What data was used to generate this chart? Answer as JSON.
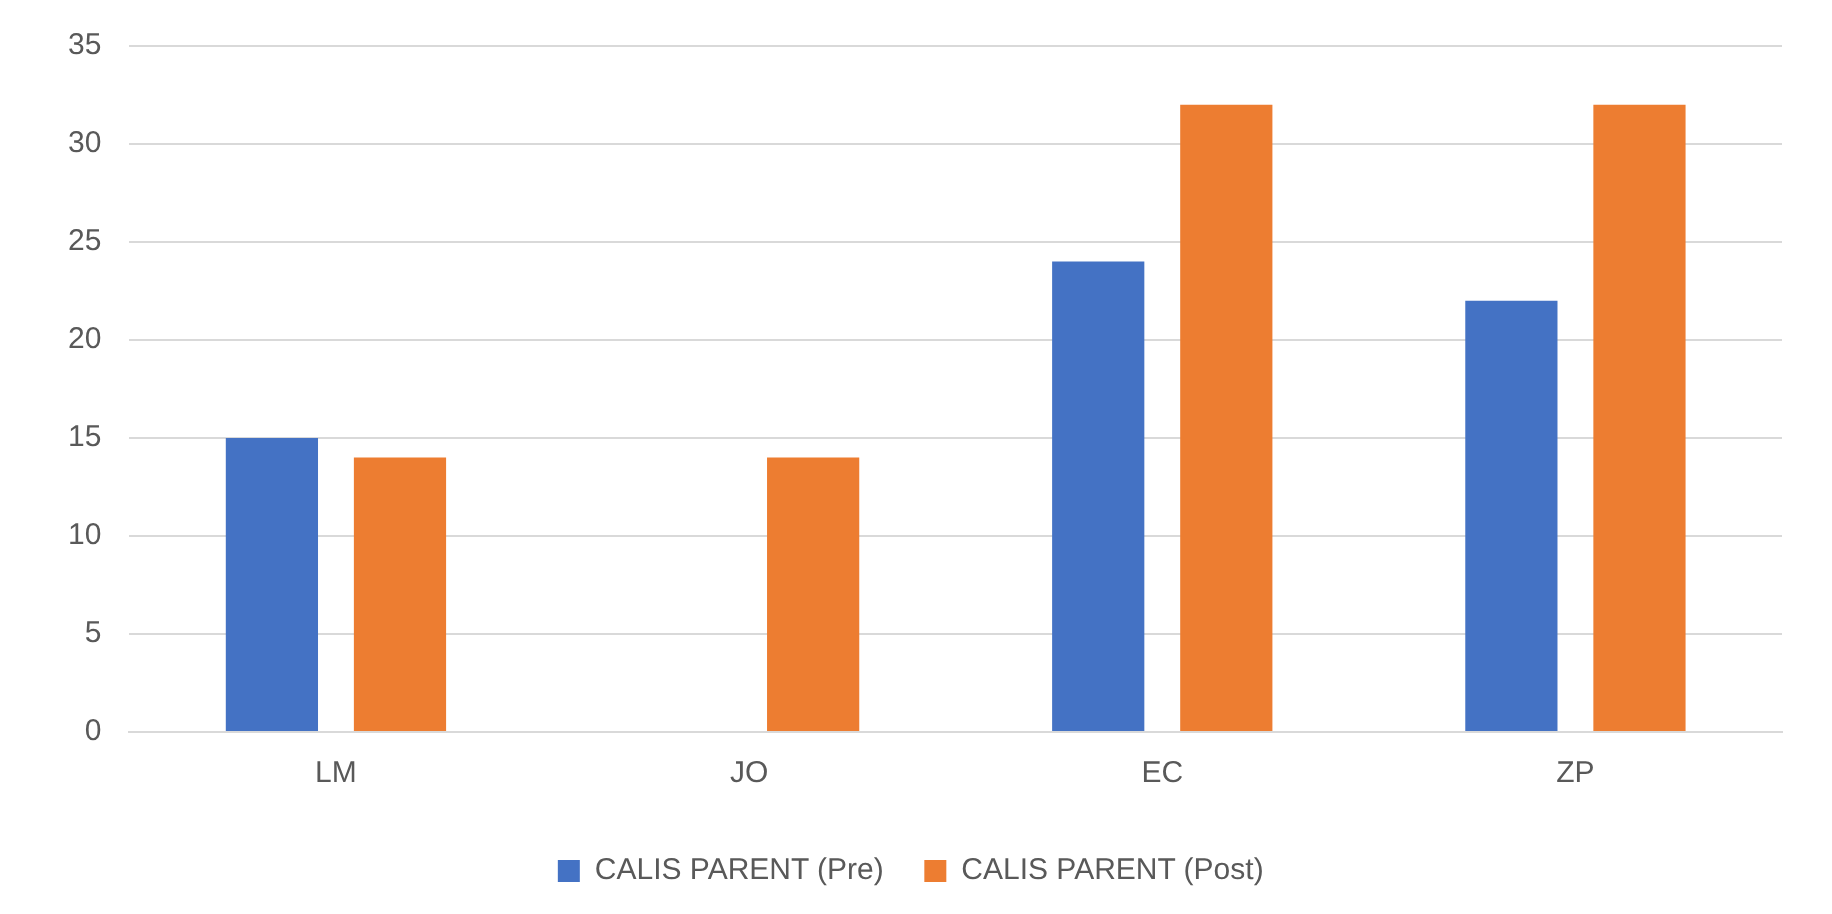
{
  "chart_data": {
    "type": "bar",
    "categories": [
      "LM",
      "JO",
      "EC",
      "ZP"
    ],
    "series": [
      {
        "name": "CALIS PARENT (Pre)",
        "color": "#4472c4",
        "values": [
          15,
          null,
          24,
          22
        ]
      },
      {
        "name": "CALIS PARENT (Post)",
        "color": "#ed7d31",
        "values": [
          14,
          14,
          32,
          32
        ]
      }
    ],
    "ylim": [
      0,
      35
    ],
    "yticks": [
      0,
      5,
      10,
      15,
      20,
      25,
      30,
      35
    ],
    "grid": "y",
    "legend": "bottom"
  }
}
